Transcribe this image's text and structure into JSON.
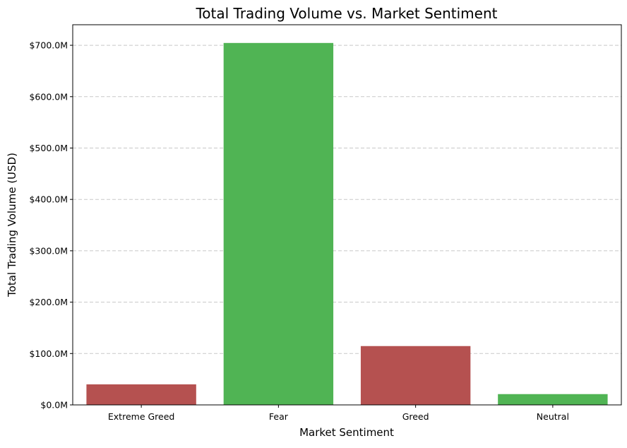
{
  "chart_data": {
    "type": "bar",
    "title": "Total Trading Volume vs. Market Sentiment",
    "xlabel": "Market Sentiment",
    "ylabel": "Total Trading Volume (USD)",
    "categories": [
      "Extreme Greed",
      "Fear",
      "Greed",
      "Neutral"
    ],
    "values": [
      40.0,
      704.5,
      114.5,
      21.0
    ],
    "value_unit": "$M",
    "ylim": [
      0,
      740
    ],
    "yticks": [
      0,
      100,
      200,
      300,
      400,
      500,
      600,
      700
    ],
    "ytick_labels": [
      "$0.0M",
      "$100.0M",
      "$200.0M",
      "$300.0M",
      "$400.0M",
      "$500.0M",
      "$600.0M",
      "$700.0M"
    ],
    "grid": "y-dashed",
    "colors": [
      "#b55150",
      "#50b454",
      "#b55150",
      "#50b454"
    ]
  }
}
